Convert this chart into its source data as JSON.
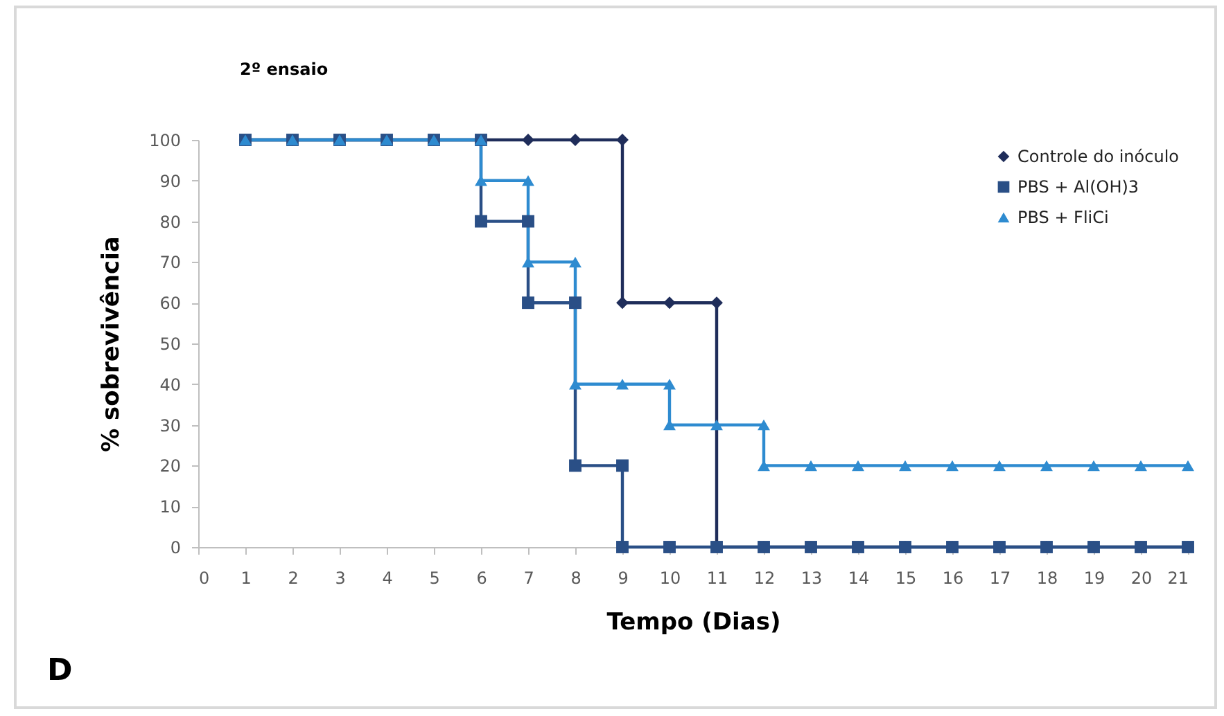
{
  "chart_data": {
    "type": "line",
    "title": "2º ensaio",
    "xlabel": "Tempo (Dias)",
    "ylabel": "% sobrevivência",
    "annotations": [
      "D"
    ],
    "xlim": [
      0,
      21
    ],
    "xticks": [
      0,
      1,
      2,
      3,
      4,
      5,
      6,
      7,
      8,
      9,
      10,
      11,
      12,
      13,
      14,
      15,
      16,
      17,
      18,
      19,
      20,
      21
    ],
    "ylim": [
      0,
      100
    ],
    "yticks": [
      0,
      10,
      20,
      30,
      40,
      50,
      60,
      70,
      80,
      90,
      100
    ],
    "grid": false,
    "legend": "top right",
    "line_style": "solid",
    "series": [
      {
        "name": "Controle do inóculo",
        "color": "#1f2d5a",
        "marker": "diamond",
        "x": [
          1,
          2,
          3,
          4,
          5,
          6,
          7,
          8,
          9,
          9,
          10,
          11,
          11,
          12,
          13,
          14,
          15,
          16,
          17,
          18,
          19,
          20,
          21
        ],
        "values": [
          100,
          100,
          100,
          100,
          100,
          100,
          100,
          100,
          100,
          60,
          60,
          60,
          0,
          0,
          0,
          0,
          0,
          0,
          0,
          0,
          0,
          0,
          0
        ]
      },
      {
        "name": "PBS + Al(OH)3",
        "color": "#2a4f86",
        "marker": "square",
        "x": [
          1,
          2,
          3,
          4,
          5,
          6,
          6,
          7,
          7,
          8,
          8,
          9,
          9,
          10,
          11,
          12,
          13,
          14,
          15,
          16,
          17,
          18,
          19,
          20,
          21
        ],
        "values": [
          100,
          100,
          100,
          100,
          100,
          100,
          80,
          80,
          60,
          60,
          20,
          20,
          0,
          0,
          0,
          0,
          0,
          0,
          0,
          0,
          0,
          0,
          0,
          0,
          0
        ]
      },
      {
        "name": "PBS + FliCi",
        "color": "#2e8bd0",
        "marker": "triangle",
        "x": [
          1,
          2,
          3,
          4,
          5,
          6,
          6,
          7,
          7,
          8,
          8,
          9,
          10,
          10,
          11,
          12,
          12,
          13,
          14,
          15,
          16,
          17,
          18,
          19,
          20,
          21
        ],
        "values": [
          100,
          100,
          100,
          100,
          100,
          100,
          90,
          90,
          70,
          70,
          40,
          40,
          40,
          30,
          30,
          30,
          20,
          20,
          20,
          20,
          20,
          20,
          20,
          20,
          20,
          20
        ]
      }
    ]
  }
}
